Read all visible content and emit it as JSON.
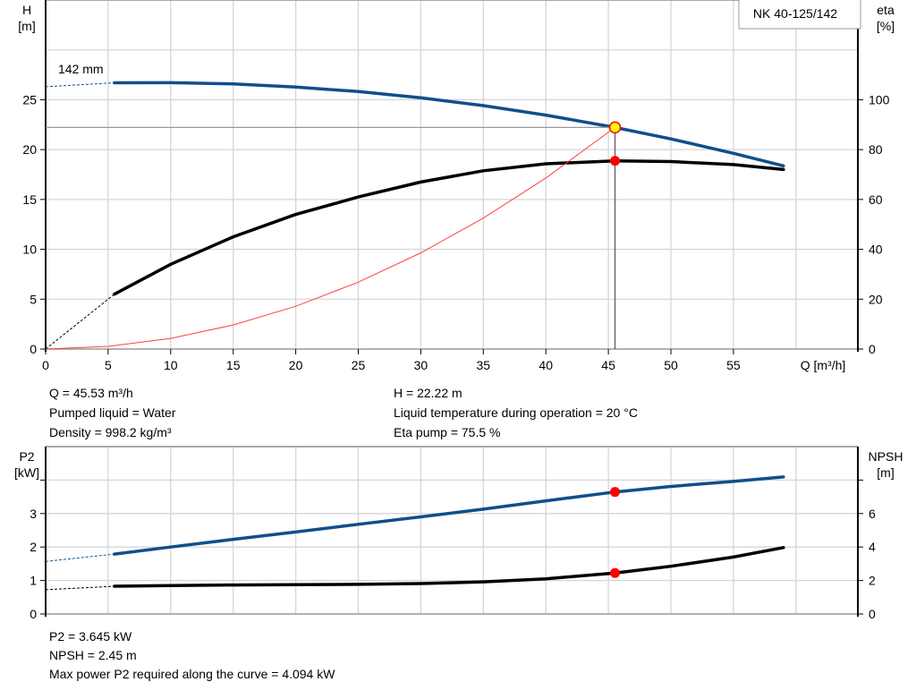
{
  "chart_data": [
    {
      "type": "line",
      "legend": "NK 40-125/142",
      "curve_label": "142 mm",
      "xlabel": "Q [m³/h]",
      "xlim": [
        0,
        65
      ],
      "xticks": [
        0,
        5,
        10,
        15,
        20,
        25,
        30,
        35,
        40,
        45,
        50,
        55
      ],
      "ylabel_left": [
        "H",
        "[m]"
      ],
      "ylim_left": [
        0,
        35
      ],
      "yticks_left": [
        0,
        5,
        10,
        15,
        20,
        25
      ],
      "ylabel_right": [
        "eta",
        "[%]"
      ],
      "ylim_right": [
        0,
        140
      ],
      "yticks_right": [
        0,
        20,
        40,
        60,
        80,
        100
      ],
      "grid": true,
      "series": [
        {
          "name": "H",
          "axis": "left",
          "color": "#0f4f8a",
          "extrapolated": [
            [
              0,
              26.3
            ],
            [
              5.5,
              26.7
            ]
          ],
          "points": [
            [
              5.5,
              26.7
            ],
            [
              10,
              26.71
            ],
            [
              15,
              26.58
            ],
            [
              20,
              26.28
            ],
            [
              25,
              25.82
            ],
            [
              30,
              25.19
            ],
            [
              35,
              24.41
            ],
            [
              40,
              23.46
            ],
            [
              45.53,
              22.22
            ],
            [
              50,
              21.07
            ],
            [
              55,
              19.63
            ],
            [
              59,
              18.37
            ]
          ]
        },
        {
          "name": "eta",
          "axis": "right",
          "color": "#000000",
          "extrapolated": [
            [
              0,
              0
            ],
            [
              5.5,
              22
            ]
          ],
          "points": [
            [
              5.5,
              22
            ],
            [
              10,
              34
            ],
            [
              15,
              45
            ],
            [
              20,
              54
            ],
            [
              25,
              61
            ],
            [
              30,
              67
            ],
            [
              35,
              71.5
            ],
            [
              40,
              74.3
            ],
            [
              45.53,
              75.5
            ],
            [
              50,
              75.2
            ],
            [
              55,
              74
            ],
            [
              59,
              72
            ]
          ]
        },
        {
          "name": "system curve",
          "axis": "left",
          "color": "#ff4040",
          "points": [
            [
              0,
              0
            ],
            [
              5,
              0.27
            ],
            [
              10,
              1.07
            ],
            [
              15,
              2.41
            ],
            [
              20,
              4.29
            ],
            [
              25,
              6.7
            ],
            [
              30,
              9.65
            ],
            [
              35,
              13.13
            ],
            [
              40,
              17.15
            ],
            [
              45.53,
              22.22
            ]
          ]
        }
      ],
      "duty_point": {
        "Q": 45.53,
        "H": 22.22,
        "eta": 75.5
      }
    },
    {
      "type": "line",
      "xlim": [
        0,
        65
      ],
      "ylabel_left": [
        "P2",
        "[kW]"
      ],
      "ylim_left": [
        0,
        5
      ],
      "yticks_left": [
        0,
        1,
        2,
        3
      ],
      "ylabel_right": [
        "NPSH",
        "[m]"
      ],
      "ylim_right": [
        0,
        10
      ],
      "yticks_right": [
        0,
        2,
        4,
        6
      ],
      "grid": true,
      "series": [
        {
          "name": "P2",
          "axis": "left",
          "color": "#0f4f8a",
          "extrapolated": [
            [
              0,
              1.57
            ],
            [
              5.5,
              1.79
            ]
          ],
          "points": [
            [
              5.5,
              1.79
            ],
            [
              10,
              2.0
            ],
            [
              15,
              2.23
            ],
            [
              20,
              2.45
            ],
            [
              25,
              2.68
            ],
            [
              30,
              2.9
            ],
            [
              35,
              3.13
            ],
            [
              40,
              3.38
            ],
            [
              45.53,
              3.645
            ],
            [
              50,
              3.81
            ],
            [
              55,
              3.96
            ],
            [
              59,
              4.094
            ]
          ]
        },
        {
          "name": "NPSH",
          "axis": "right",
          "color": "#000000",
          "extrapolated": [
            [
              0,
              1.45
            ],
            [
              5.5,
              1.66
            ]
          ],
          "points": [
            [
              5.5,
              1.66
            ],
            [
              10,
              1.7
            ],
            [
              15,
              1.73
            ],
            [
              20,
              1.75
            ],
            [
              25,
              1.77
            ],
            [
              30,
              1.82
            ],
            [
              35,
              1.92
            ],
            [
              40,
              2.1
            ],
            [
              45.53,
              2.45
            ],
            [
              50,
              2.85
            ],
            [
              55,
              3.4
            ],
            [
              59,
              3.97
            ]
          ]
        }
      ],
      "duty_point": {
        "Q": 45.53,
        "P2": 3.645,
        "NPSH": 2.45
      }
    }
  ],
  "info_top": {
    "q": "Q = 45.53 m³/h",
    "liquid": "Pumped liquid = Water",
    "density": "Density = 998.2 kg/m³",
    "h": "H = 22.22 m",
    "temp": "Liquid temperature during operation = 20 °C",
    "eta": "Eta pump = 75.5 %"
  },
  "info_bottom": {
    "p2": "P2 = 3.645 kW",
    "npsh": "NPSH = 2.45 m",
    "max_power": "Max power P2 required along the curve = 4.094 kW"
  }
}
